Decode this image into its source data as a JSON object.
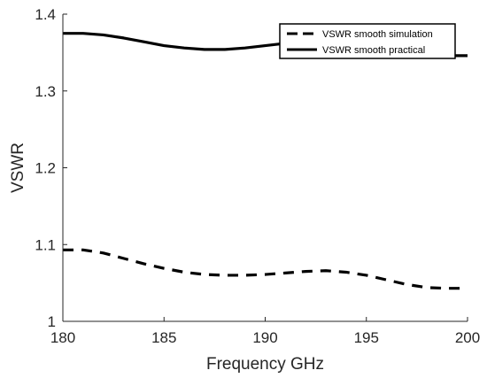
{
  "chart_data": {
    "type": "line",
    "title": "",
    "xlabel": "Frequency GHz",
    "ylabel": "VSWR",
    "xlim": [
      180,
      200
    ],
    "ylim": [
      1,
      1.4
    ],
    "xticks": [
      180,
      185,
      190,
      195,
      200
    ],
    "xtick_labels": [
      "180",
      "185",
      "190",
      "195",
      "200"
    ],
    "yticks": [
      1,
      1.1,
      1.2,
      1.3,
      1.4
    ],
    "ytick_labels": [
      "1",
      "1.1",
      "1.2",
      "1.3",
      "1.4"
    ],
    "grid": false,
    "legend_position": "top-right",
    "series": [
      {
        "name": "VSWR smooth simulation",
        "style": "dashed",
        "color": "#000000",
        "x": [
          180,
          181,
          182,
          183,
          184,
          185,
          186,
          187,
          188,
          189,
          190,
          191,
          192,
          193,
          194,
          195,
          196,
          197,
          198,
          199,
          200
        ],
        "y": [
          1.093,
          1.093,
          1.089,
          1.082,
          1.075,
          1.069,
          1.064,
          1.061,
          1.06,
          1.06,
          1.061,
          1.063,
          1.065,
          1.066,
          1.064,
          1.06,
          1.054,
          1.048,
          1.044,
          1.043,
          1.043
        ]
      },
      {
        "name": "VSWR smooth practical",
        "style": "solid",
        "color": "#000000",
        "x": [
          180,
          181,
          182,
          183,
          184,
          185,
          186,
          187,
          188,
          189,
          190,
          191,
          192,
          193,
          194,
          195,
          196,
          197,
          198,
          199,
          200
        ],
        "y": [
          1.375,
          1.375,
          1.373,
          1.369,
          1.364,
          1.359,
          1.356,
          1.354,
          1.354,
          1.356,
          1.359,
          1.362,
          1.364,
          1.362,
          1.357,
          1.351,
          1.347,
          1.346,
          1.346,
          1.346,
          1.346
        ]
      }
    ]
  }
}
